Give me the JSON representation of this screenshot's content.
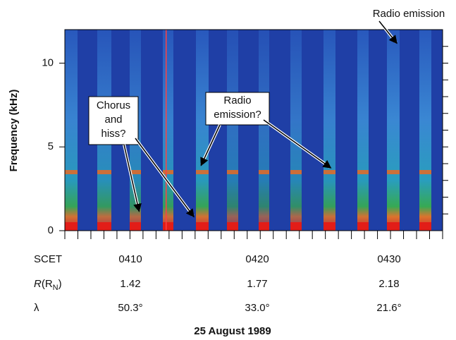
{
  "chart_data": {
    "type": "spectrogram",
    "ylabel": "Frequency (kHz)",
    "ylim": [
      0,
      12
    ],
    "yticks": [
      0,
      5,
      10
    ],
    "xlabel": "25 August 1989",
    "rows": [
      {
        "label": [
          "SCET"
        ],
        "values": [
          "0410",
          "0420",
          "0430"
        ]
      },
      {
        "label": [
          "R",
          "(R",
          "N",
          ")"
        ],
        "values": [
          "1.42",
          "1.77",
          "2.18"
        ]
      },
      {
        "label": [
          "λ"
        ],
        "values": [
          "50.3°",
          "33.0°",
          "21.6°"
        ]
      }
    ],
    "annotations": [
      {
        "lines": [
          "Radio emission"
        ]
      },
      {
        "lines": [
          "Chorus",
          "and",
          "hiss?"
        ]
      },
      {
        "lines": [
          "Radio",
          "emission?"
        ]
      }
    ]
  }
}
